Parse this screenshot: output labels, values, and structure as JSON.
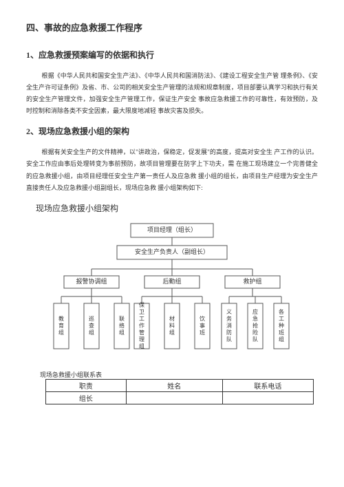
{
  "doc": {
    "title": "四、事故的应急救援工作程序",
    "s1": {
      "head": "1、应急救援预案编写的依据和执行",
      "para": "根据《中华人民共和国安全生产法》、《中华人民共和国消防法》、《建设工程安全生产管 理条例》、《安全生产许可证条例》及省、市、公司的相关安全生产管理的法规和规章制度，项目部要认真学习和执行有关的安全生产管理文件，加强安全生产管理工作，保证生产安全  事故应急救援工作的可靠性，有效预防，及时控制和消除各类不安全因素，最大限度地减轻 事故灾害及损失。"
    },
    "s2": {
      "head": "2、现场应急救援小组的架构",
      "para": "根据有关安全生产的文件精神，以\"讲政治，保稳定，促发展\"的高度，提高对安全生 产工作的认识。安全工作应由事后处理转变为事前预防，故项目管理要在防字上下功夫，需 在施工现场建立一个完善健全的应急救援小组，由项目经理任安全生产第一责任人及应急救 援小组的组长，由项目生产经理为安全生产直接责任人及应急救援小组副组长，现场应急救 援小组架构如下:"
    },
    "chart": {
      "title": "现场应急救援小组架构",
      "box_stroke": "#555555",
      "line_stroke": "#555555",
      "font_fill": "#333333",
      "bg": "#ffffff",
      "font_size_h": 9,
      "font_size_v": 8,
      "top1": "项目经理（组长）",
      "top2": "安全生产负责人（副组长）",
      "mid": [
        "报警协调组",
        "后勤组",
        "救护组"
      ],
      "leaves": [
        "教育组",
        "巡查组",
        "联络组",
        "保卫工作管理组",
        "材料组",
        "饮事班",
        "义务消防队",
        "应急抢险队",
        "各工种班组"
      ]
    },
    "contact": {
      "label": "现场急救援小组联系表",
      "headers": [
        "职责",
        "姓名",
        "联系电话"
      ],
      "row1_col1": "组长"
    }
  }
}
